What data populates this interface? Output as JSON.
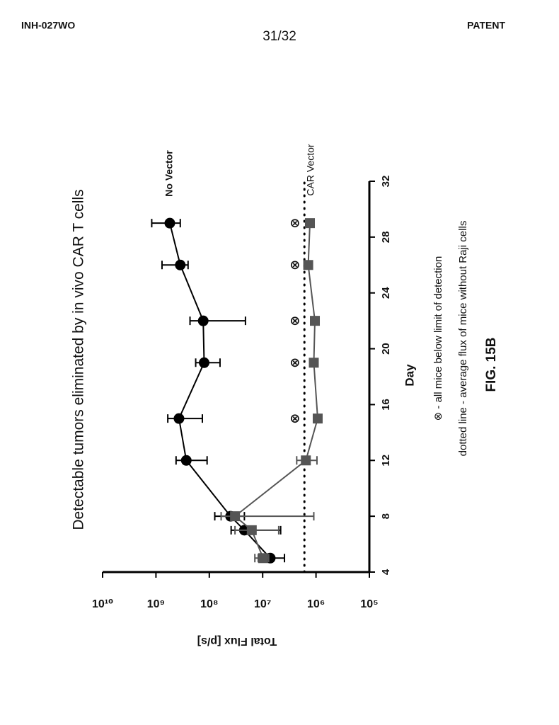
{
  "header": {
    "left": "INH-027WO",
    "center": "31/32",
    "right": "PATENT"
  },
  "chart_data": {
    "type": "line",
    "title": "Detectable tumors eliminated by in vivo CAR T cells",
    "x_label": "Day",
    "y_label": "Total Flux [p/s]",
    "log_y": true,
    "xlim": [
      4,
      32
    ],
    "xticks": [
      4,
      8,
      12,
      16,
      20,
      24,
      28,
      32
    ],
    "ylim": [
      100000,
      10000000000
    ],
    "yticks": [
      {
        "value": 100000,
        "label": "10⁵"
      },
      {
        "value": 1000000,
        "label": "10⁶"
      },
      {
        "value": 10000000,
        "label": "10⁷"
      },
      {
        "value": 100000000,
        "label": "10⁸"
      },
      {
        "value": 1000000000,
        "label": "10⁹"
      },
      {
        "value": 10000000000,
        "label": "10¹⁰"
      }
    ],
    "series": [
      {
        "name": "No Vector",
        "color": "#000000",
        "marker": "circle",
        "x": [
          5,
          7,
          8,
          12,
          15,
          19,
          22,
          26,
          29
        ],
        "values": [
          7200000,
          22000000,
          40000000,
          270000000,
          370000000,
          125000000,
          130000000,
          350000000,
          550000000
        ],
        "error_low": [
          3900000,
          4600000,
          22000000,
          110000000,
          135000000,
          63000000,
          21000000,
          250000000,
          350000000
        ],
        "error_high": [
          12000000,
          39000000,
          79000000,
          420000000,
          600000000,
          180000000,
          230000000,
          770000000,
          1200000000
        ]
      },
      {
        "name": "CAR Vector",
        "color": "#555555",
        "marker": "square",
        "x": [
          5,
          7,
          8,
          12,
          15,
          19,
          22,
          26,
          29
        ],
        "values": [
          9800000,
          16000000,
          33000000,
          1550000,
          930000,
          1100000,
          1050000,
          1400000,
          1300000
        ],
        "error_low": [
          7700000,
          5000000,
          1100000,
          960000,
          null,
          null,
          null,
          null,
          null
        ],
        "error_high": [
          14000000,
          33000000,
          60000000,
          2300000,
          null,
          null,
          null,
          null,
          null
        ]
      }
    ],
    "reference_line": {
      "value": 1650000,
      "style": "dotted"
    },
    "below_detection": {
      "symbol": "⊗",
      "x": [
        15,
        19,
        22,
        26,
        29
      ],
      "values": [
        2400000,
        2400000,
        2400000,
        2400000,
        2400000
      ]
    },
    "notes": [
      "⊗ - all mice below limit of detection",
      "dotted line - average flux of mice without Raji cells"
    ],
    "figure_label": "FIG. 15B"
  }
}
